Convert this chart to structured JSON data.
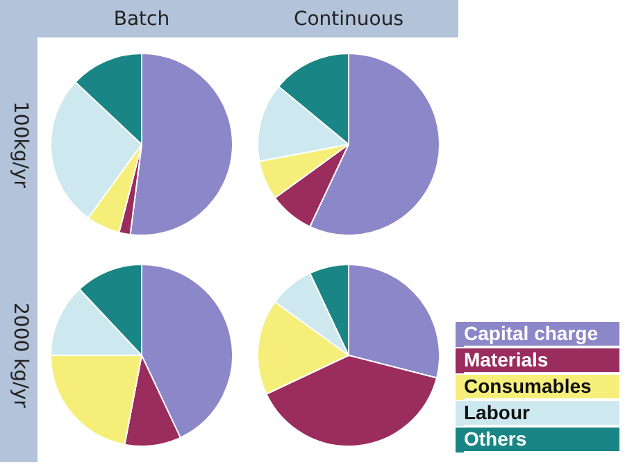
{
  "chart_data": [
    {
      "type": "pie",
      "title": "Batch",
      "ylabel": "100kg/yr",
      "categories": [
        null,
        null,
        null,
        null,
        null
      ],
      "values": [
        52,
        2,
        6,
        27,
        13
      ],
      "colors": [
        "#8b87c8",
        "#9b2c5e",
        "#f5ef7a",
        "#cde9ef",
        "#1a8585"
      ]
    },
    {
      "type": "pie",
      "title": "Continuous",
      "categories": [
        null,
        null,
        null,
        null,
        null
      ],
      "values": [
        57,
        8,
        7,
        14,
        14
      ],
      "colors": [
        "#8b87c8",
        "#9b2c5e",
        "#f5ef7a",
        "#cde9ef",
        "#1a8585"
      ]
    },
    {
      "type": "pie",
      "ylabel": "2000 kg/yr",
      "categories": [
        null,
        null,
        null,
        null,
        null
      ],
      "values": [
        43,
        10,
        22,
        13,
        12
      ],
      "colors": [
        "#8b87c8",
        "#9b2c5e",
        "#f5ef7a",
        "#cde9ef",
        "#1a8585"
      ]
    },
    {
      "type": "pie",
      "legend": "right",
      "categories": [
        "Capital charge",
        "Materials",
        "Consumables",
        "Labour",
        "Others"
      ],
      "values": [
        29,
        39,
        17,
        8,
        7
      ],
      "colors": [
        "#8b87c8",
        "#9b2c5e",
        "#f5ef7a",
        "#cde9ef",
        "#1a8585"
      ]
    }
  ]
}
